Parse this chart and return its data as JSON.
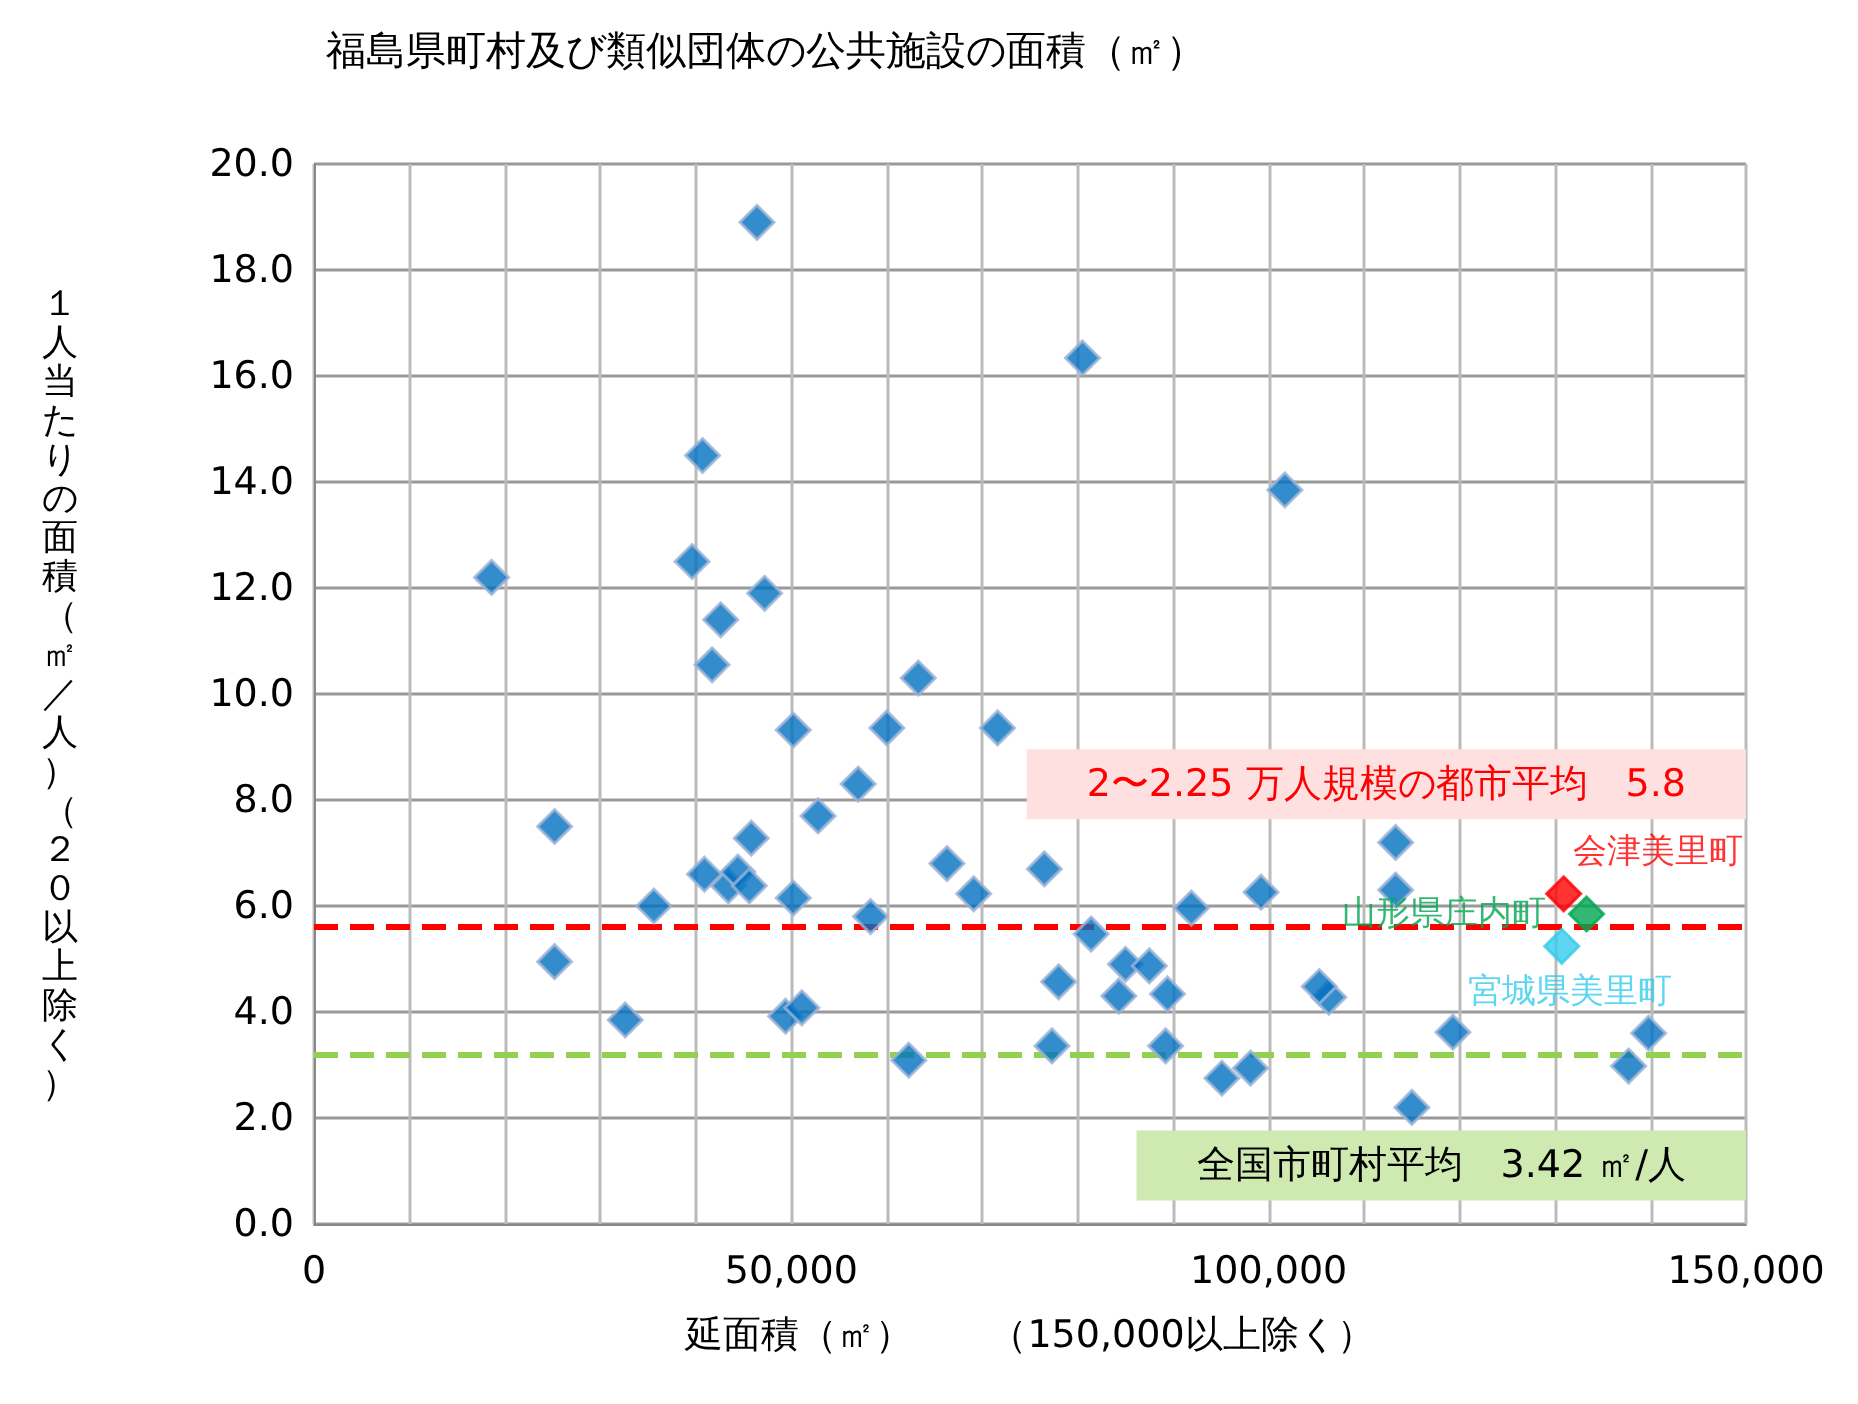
{
  "chart_data": {
    "type": "scatter",
    "title": "福島県町村及び類似団体の公共施設の面積（㎡）",
    "xlabel": "延面積（㎡）　　（150,000以上除く）",
    "ylabel": "１人当たりの面積（㎡／人）（２０以上除く）",
    "marker": "diamond",
    "grid": true,
    "legend": false,
    "xlim": [
      0,
      150000
    ],
    "xticks": [
      {
        "value": 0,
        "label": "0"
      },
      {
        "value": 10000,
        "label": null
      },
      {
        "value": 20000,
        "label": null
      },
      {
        "value": 30000,
        "label": null
      },
      {
        "value": 40000,
        "label": null
      },
      {
        "value": 50000,
        "label": "50,000"
      },
      {
        "value": 60000,
        "label": null
      },
      {
        "value": 70000,
        "label": null
      },
      {
        "value": 80000,
        "label": null
      },
      {
        "value": 90000,
        "label": null
      },
      {
        "value": 100000,
        "label": "100,000"
      },
      {
        "value": 110000,
        "label": null
      },
      {
        "value": 120000,
        "label": null
      },
      {
        "value": 130000,
        "label": null
      },
      {
        "value": 140000,
        "label": null
      },
      {
        "value": 150000,
        "label": "150,000"
      }
    ],
    "ylim": [
      0,
      20
    ],
    "yticks": [
      {
        "value": 0,
        "label": "0.0"
      },
      {
        "value": 2,
        "label": "2.0"
      },
      {
        "value": 4,
        "label": "4.0"
      },
      {
        "value": 6,
        "label": "6.0"
      },
      {
        "value": 8,
        "label": "8.0"
      },
      {
        "value": 10,
        "label": "10.0"
      },
      {
        "value": 12,
        "label": "12.0"
      },
      {
        "value": 14,
        "label": "14.0"
      },
      {
        "value": 16,
        "label": "16.0"
      },
      {
        "value": 18,
        "label": "18.0"
      },
      {
        "value": 20,
        "label": "20.0"
      }
    ],
    "series": [
      {
        "color": "#0070c0",
        "x": [
          18600,
          25200,
          25200,
          32600,
          35600,
          40700,
          39600,
          46400,
          47200,
          42600,
          41700,
          63300,
          50200,
          60000,
          71600,
          57000,
          52800,
          45800,
          40900,
          43400,
          44400,
          45600,
          50200,
          58300,
          66300,
          69100,
          76500,
          49400,
          51100,
          62300,
          78000,
          77300,
          81400,
          85000,
          87500,
          84300,
          89400,
          91900,
          89200,
          95100,
          98100,
          99200,
          106300,
          105300,
          113300,
          113300,
          115000,
          119300,
          137700,
          139800,
          80500,
          101700
        ],
        "values": [
          12.2,
          7.5,
          4.95,
          3.85,
          6.0,
          14.5,
          12.5,
          18.9,
          11.9,
          11.4,
          10.55,
          10.3,
          9.32,
          9.36,
          9.36,
          8.3,
          7.7,
          7.28,
          6.6,
          6.38,
          6.64,
          6.38,
          6.15,
          5.8,
          6.8,
          6.23,
          6.7,
          3.92,
          4.08,
          3.09,
          4.57,
          3.36,
          5.47,
          4.9,
          4.87,
          4.3,
          4.34,
          5.96,
          3.36,
          2.75,
          2.94,
          6.26,
          4.28,
          4.48,
          7.2,
          6.3,
          2.2,
          3.62,
          2.98,
          3.6,
          16.34,
          13.85
        ]
      },
      {
        "name": "会津美里町",
        "color": "#ff0000",
        "x": [
          130900
        ],
        "values": [
          6.23
        ]
      },
      {
        "name": "山形県庄内町",
        "color": "#00a651",
        "x": [
          133300
        ],
        "values": [
          5.85
        ]
      },
      {
        "name": "宮城県美里町",
        "color": "#33ccee",
        "x": [
          130700
        ],
        "values": [
          5.24
        ]
      }
    ],
    "ref_lines": [
      {
        "axis": "y",
        "value": 5.6,
        "label": "2〜2.25 万人規模の都市平均　5.8",
        "color": "#ff0000",
        "line_style": "dashed"
      },
      {
        "axis": "y",
        "value": 3.2,
        "label": "全国市町村平均　3.42 ㎡/人",
        "color": "#92d050",
        "line_style": "dashed"
      }
    ]
  }
}
